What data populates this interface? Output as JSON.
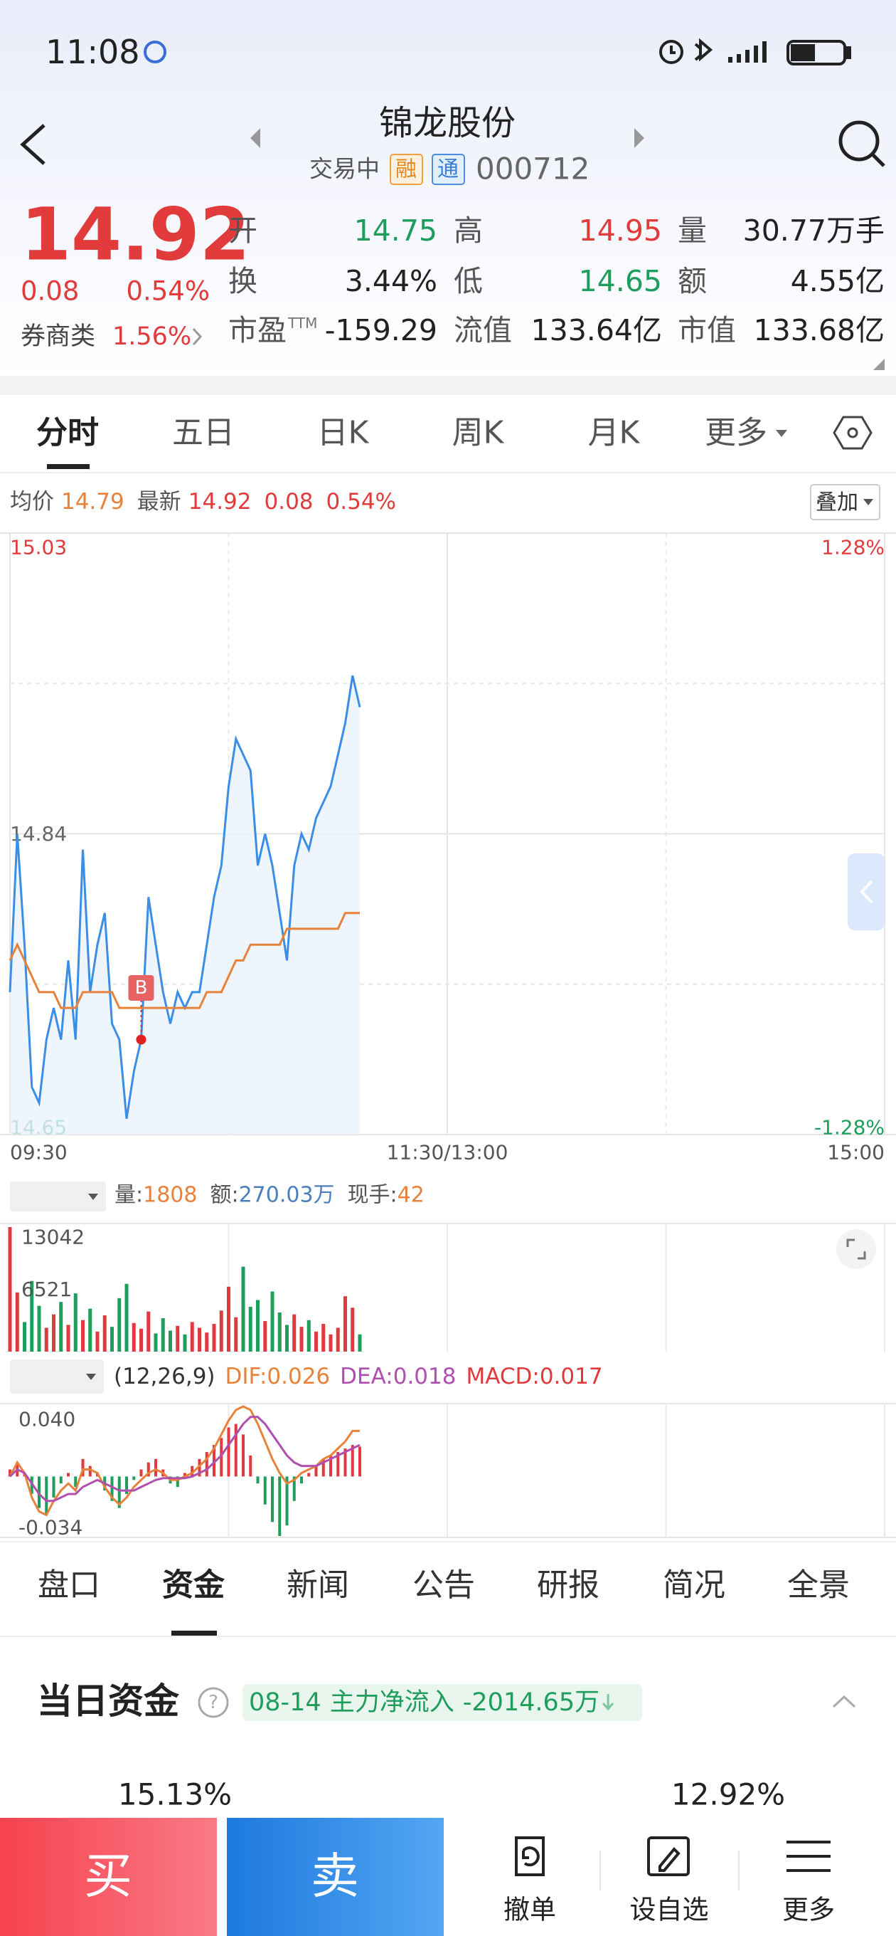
{
  "status_bar": {
    "time": "11:08"
  },
  "header": {
    "title": "锦龙股份",
    "status": "交易中",
    "tags": [
      "融",
      "通"
    ],
    "code": "000712"
  },
  "quote": {
    "price": "14.92",
    "change": "0.08",
    "change_pct": "0.54%",
    "sector": "券商类",
    "sector_pct": "1.56%",
    "stats": [
      [
        {
          "label": "开",
          "value": "14.75"
        },
        {
          "label": "高",
          "value": "14.95"
        },
        {
          "label": "量",
          "value": "30.77万手"
        }
      ],
      [
        {
          "label": "换",
          "value": "3.44%"
        },
        {
          "label": "低",
          "value": "14.65"
        },
        {
          "label": "额",
          "value": "4.55亿"
        }
      ],
      [
        {
          "label": "市盈",
          "label_sup": "TTM",
          "value": "-159.29"
        },
        {
          "label": "流值",
          "value": "133.64亿"
        },
        {
          "label": "市值",
          "value": "133.68亿"
        }
      ]
    ]
  },
  "chart_tabs": [
    "分时",
    "五日",
    "日K",
    "周K",
    "月K",
    "更多"
  ],
  "overlay_button": "叠加",
  "chart_data": [
    {
      "type": "line",
      "grid": true,
      "readout": [
        {
          "label": "均价",
          "value": "14.79",
          "color": "#e8823a"
        },
        {
          "label": "最新",
          "value": "14.92",
          "color": "#e23b3b"
        },
        {
          "value": "0.08",
          "color": "#e23b3b"
        },
        {
          "value": "0.54%",
          "color": "#e23b3b"
        }
      ],
      "ylim": [
        14.65,
        15.03
      ],
      "yticks": [
        14.65,
        14.84,
        15.03
      ],
      "y2lim": [
        -1.28,
        1.28
      ],
      "y2ticks": [
        {
          "value": -1.28,
          "label": "-1.28%"
        },
        {
          "value": 1.28,
          "label": "1.28%"
        }
      ],
      "xticks": [
        "09:30",
        "11:30/13:00",
        "15:00"
      ],
      "annotations": [
        {
          "text": "B"
        }
      ],
      "series": [
        {
          "color": "#3a8ee6",
          "values": [
            14.74,
            14.84,
            14.77,
            14.68,
            14.67,
            14.71,
            14.73,
            14.71,
            14.76,
            14.71,
            14.83,
            14.74,
            14.77,
            14.79,
            14.72,
            14.71,
            14.66,
            14.69,
            14.71,
            14.8,
            14.77,
            14.74,
            14.72,
            14.74,
            14.73,
            14.74,
            14.74,
            14.77,
            14.8,
            14.82,
            14.87,
            14.9,
            14.89,
            14.88,
            14.82,
            14.84,
            14.82,
            14.79,
            14.76,
            14.82,
            14.84,
            14.83,
            14.85,
            14.86,
            14.87,
            14.89,
            14.91,
            14.94,
            14.92
          ]
        },
        {
          "color": "#e8823a",
          "values": [
            14.76,
            14.77,
            14.76,
            14.75,
            14.74,
            14.74,
            14.74,
            14.73,
            14.73,
            14.73,
            14.74,
            14.74,
            14.74,
            14.74,
            14.74,
            14.73,
            14.73,
            14.73,
            14.73,
            14.73,
            14.73,
            14.73,
            14.73,
            14.73,
            14.73,
            14.73,
            14.73,
            14.74,
            14.74,
            14.74,
            14.75,
            14.76,
            14.76,
            14.77,
            14.77,
            14.77,
            14.77,
            14.77,
            14.78,
            14.78,
            14.78,
            14.78,
            14.78,
            14.78,
            14.78,
            14.78,
            14.79,
            14.79,
            14.79
          ]
        }
      ]
    },
    {
      "type": "bar",
      "title": "成交量",
      "up_color": "#e0393e",
      "down_color": "#1e9d5c",
      "readout": [
        {
          "label": "量:",
          "value": "1808",
          "color": "#e8823a"
        },
        {
          "label": "额:",
          "value": "270.03万",
          "color": "#4a7fc0"
        },
        {
          "label": "现手:",
          "value": "42",
          "color": "#e8823a"
        }
      ],
      "ylim": [
        0,
        13042
      ],
      "yticks": [
        6521,
        13042
      ],
      "values": [
        13042,
        6200,
        3100,
        7400,
        4800,
        2500,
        3900,
        5200,
        2800,
        6100,
        3300,
        4500,
        2100,
        3800,
        2600,
        5600,
        7100,
        3000,
        2400,
        4200,
        1900,
        3500,
        2200,
        2700,
        1800,
        3100,
        2500,
        2000,
        2900,
        4300,
        6800,
        3600,
        8900,
        4700,
        5400,
        3200,
        6300,
        4100,
        2800,
        3900,
        2600,
        3300,
        2100,
        2900,
        1800,
        2500,
        5800,
        4600,
        1808
      ]
    },
    {
      "type": "macd",
      "title": "MACD",
      "up_color": "#e0393e",
      "down_color": "#1e9d5c",
      "readout": [
        {
          "value": "(12,26,9)",
          "color": "#333333"
        },
        {
          "value": "DIF:0.026",
          "color": "#e8823a"
        },
        {
          "value": "DEA:0.018",
          "color": "#b04fb0"
        },
        {
          "value": "MACD:0.017",
          "color": "#e0393e"
        }
      ],
      "ylim": [
        -0.034,
        0.04
      ],
      "yticks": [
        -0.034,
        {
          "value": 0.04,
          "label": "0.040"
        }
      ],
      "series": [
        {
          "values": [
            0.004,
            0.008,
            0.002,
            -0.01,
            -0.018,
            -0.022,
            -0.012,
            -0.004,
            0.002,
            -0.006,
            0.01,
            0.006,
            0.002,
            -0.008,
            -0.014,
            -0.018,
            -0.01,
            -0.002,
            0.004,
            0.008,
            0.01,
            0.004,
            -0.004,
            -0.006,
            0.002,
            0.006,
            0.01,
            0.014,
            0.018,
            0.022,
            0.028,
            0.03,
            0.024,
            0.012,
            -0.004,
            -0.016,
            -0.026,
            -0.034,
            -0.028,
            -0.014,
            -0.004,
            0.002,
            0.006,
            0.01,
            0.012,
            0.014,
            0.016,
            0.018,
            0.017
          ]
        },
        {
          "color": "#e8823a",
          "values": [
            0.0,
            0.008,
            0.002,
            -0.012,
            -0.02,
            -0.022,
            -0.014,
            -0.008,
            -0.004,
            -0.008,
            0.004,
            0.004,
            0.002,
            -0.006,
            -0.012,
            -0.016,
            -0.012,
            -0.006,
            -0.002,
            0.002,
            0.004,
            0.002,
            -0.002,
            -0.002,
            0.0,
            0.002,
            0.006,
            0.01,
            0.016,
            0.024,
            0.032,
            0.038,
            0.04,
            0.038,
            0.03,
            0.02,
            0.01,
            0.002,
            -0.004,
            -0.002,
            0.002,
            0.004,
            0.006,
            0.01,
            0.012,
            0.016,
            0.02,
            0.026,
            0.026
          ]
        },
        {
          "color": "#b04fb0",
          "values": [
            0.0,
            0.004,
            0.002,
            -0.004,
            -0.01,
            -0.014,
            -0.014,
            -0.012,
            -0.01,
            -0.01,
            -0.006,
            -0.004,
            -0.002,
            -0.004,
            -0.006,
            -0.008,
            -0.008,
            -0.008,
            -0.006,
            -0.004,
            -0.002,
            -0.001,
            -0.001,
            -0.001,
            -0.001,
            0.0,
            0.002,
            0.004,
            0.008,
            0.012,
            0.018,
            0.024,
            0.03,
            0.034,
            0.034,
            0.03,
            0.024,
            0.018,
            0.012,
            0.008,
            0.006,
            0.006,
            0.006,
            0.008,
            0.01,
            0.012,
            0.014,
            0.016,
            0.018
          ]
        }
      ]
    }
  ],
  "detail_tabs": [
    "盘口",
    "资金",
    "新闻",
    "公告",
    "研报",
    "简况",
    "全景"
  ],
  "fund": {
    "title": "当日资金",
    "help": "?",
    "date": "08-14",
    "label": "主力净流入",
    "value": "-2014.65万",
    "left_pct": "15.13%",
    "right_pct": "12.92%"
  },
  "actions": {
    "buy": "买",
    "sell": "卖",
    "tools": [
      "撤单",
      "设自选",
      "更多"
    ]
  }
}
